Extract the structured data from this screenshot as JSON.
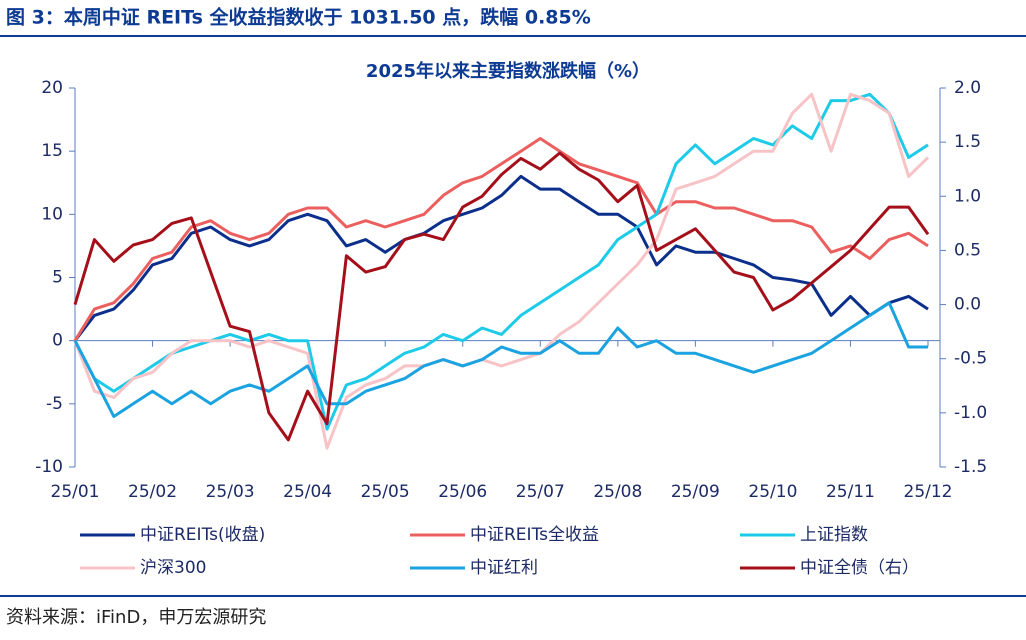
{
  "header": {
    "title": "图 3：本周中证 REITs 全收益指数收于 1031.50 点，跌幅 0.85%"
  },
  "chart_data": {
    "type": "line",
    "title": "2025年以来主要指数涨跌幅（%）",
    "categories": [
      "25/01",
      null,
      null,
      null,
      "25/02",
      null,
      null,
      null,
      "25/03",
      null,
      null,
      null,
      "25/04",
      null,
      null,
      null,
      "25/05",
      null,
      null,
      null,
      "25/06",
      null,
      null,
      null,
      "25/07",
      null,
      null,
      null,
      "25/08",
      null,
      null,
      null,
      "25/09",
      null,
      null,
      null,
      "25/10",
      null,
      null,
      null,
      "25/11",
      null,
      null,
      null,
      "25/12"
    ],
    "ylim": [
      -10,
      20
    ],
    "yticks": [
      -10,
      -5,
      0,
      5,
      10,
      15,
      20
    ],
    "y2lim": [
      -1.5,
      2.0
    ],
    "y2ticks": [
      -1.5,
      {
        "value": -1,
        "label": "-1.0"
      },
      -0.5,
      {
        "value": 0,
        "label": "0.0"
      },
      0.5,
      {
        "value": 1,
        "label": "1.0"
      },
      1.5,
      {
        "value": 2,
        "label": "2.0"
      }
    ],
    "series": [
      {
        "name": "中证REITs(收盘)",
        "color": "#0b2f8a",
        "values": [
          0,
          2,
          2.5,
          4,
          6,
          6.5,
          8.5,
          9,
          8,
          7.5,
          8,
          9.5,
          10,
          9.5,
          7.5,
          8,
          7,
          8,
          8.5,
          9.5,
          10,
          10.5,
          11.5,
          13,
          12,
          12,
          11,
          10,
          10,
          9,
          6,
          7.5,
          7,
          7,
          6.5,
          6,
          5,
          4.8,
          4.5,
          2,
          3.5,
          2,
          3,
          3.5,
          2.5
        ]
      },
      {
        "name": "中证REITs全收益",
        "color": "#ec5f5f",
        "values": [
          0,
          2.5,
          3,
          4.5,
          6.5,
          7,
          9,
          9.5,
          8.5,
          8,
          8.5,
          10,
          10.5,
          10.5,
          9,
          9.5,
          9,
          9.5,
          10,
          11.5,
          12.5,
          13,
          14,
          15,
          16,
          15,
          14,
          13.5,
          13,
          12.5,
          10,
          11,
          11,
          10.5,
          10.5,
          10,
          9.5,
          9.5,
          9,
          7,
          7.5,
          6.5,
          8,
          8.5,
          7.5
        ]
      },
      {
        "name": "上证指数",
        "color": "#1dcbe8",
        "values": [
          0,
          -3,
          -4,
          -3,
          -2,
          -1,
          -0.5,
          0,
          0.5,
          0,
          0.5,
          0,
          0,
          -7,
          -3.5,
          -3,
          -2,
          -1,
          -0.5,
          0.5,
          0,
          1,
          0.5,
          2,
          3,
          4,
          5,
          6,
          8,
          9,
          10,
          14,
          15.5,
          14,
          15,
          16,
          15.5,
          17,
          16,
          19,
          19,
          19.5,
          18,
          14.5,
          15.5
        ]
      },
      {
        "name": "沪深300",
        "color": "#f7c3c6",
        "values": [
          0,
          -4,
          -4.5,
          -3,
          -2.5,
          -1,
          0,
          0,
          0,
          -0.5,
          0,
          -0.5,
          -1,
          -8.5,
          -4.5,
          -3.5,
          -3,
          -2,
          -2,
          -1.5,
          -2,
          -1.5,
          -2,
          -1.5,
          -1,
          0.5,
          1.5,
          3,
          4.5,
          6,
          8,
          12,
          12.5,
          13,
          14,
          15,
          15,
          18,
          19.5,
          15,
          19.5,
          19,
          18,
          13,
          14.5
        ]
      },
      {
        "name": "中证红利",
        "color": "#1aa3e0",
        "values": [
          0,
          -3,
          -6,
          -5,
          -4,
          -5,
          -4,
          -5,
          -4,
          -3.5,
          -4,
          -3,
          -2,
          -5,
          -5,
          -4,
          -3.5,
          -3,
          -2,
          -1.5,
          -2,
          -1.5,
          -0.5,
          -1,
          -1,
          0,
          -1,
          -1,
          1,
          -0.5,
          0,
          -1,
          -1,
          -1.5,
          -2,
          -2.5,
          -2,
          -1.5,
          -1,
          0,
          1,
          2,
          3,
          -0.5,
          -0.5
        ]
      },
      {
        "name": "中证全债（右）",
        "color": "#a50f1a",
        "axis": "y2",
        "values": [
          0,
          0.6,
          0.4,
          0.55,
          0.6,
          0.75,
          0.8,
          0.3,
          -0.2,
          -0.25,
          -1.0,
          -1.25,
          -0.8,
          -1.1,
          0.45,
          0.3,
          0.35,
          0.6,
          0.65,
          0.6,
          0.9,
          1.0,
          1.2,
          1.35,
          1.25,
          1.4,
          1.25,
          1.15,
          0.95,
          1.1,
          0.5,
          0.6,
          0.7,
          0.5,
          0.3,
          0.25,
          -0.05,
          0.05,
          0.2,
          0.35,
          0.5,
          0.7,
          0.9,
          0.9,
          0.65
        ]
      }
    ]
  },
  "source": "资料来源：iFinD，申万宏源研究"
}
